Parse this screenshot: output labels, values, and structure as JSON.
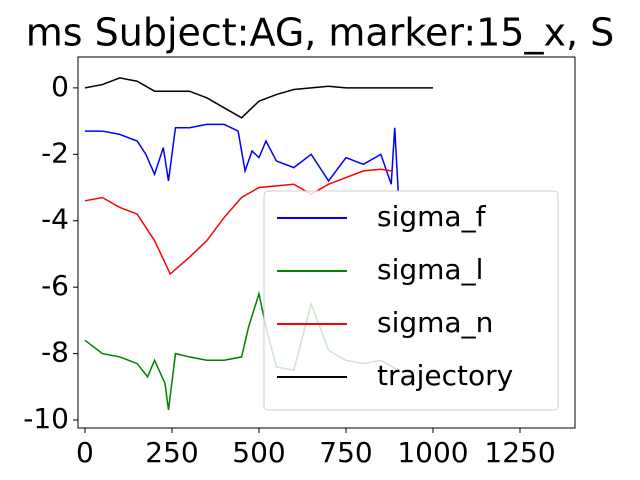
{
  "chart_data": {
    "type": "line",
    "title": "ms Subject:AG, marker:15_x, S",
    "xlim": [
      -20,
      1408
    ],
    "xticks": [
      0,
      250,
      500,
      750,
      1000,
      1250
    ],
    "ylim": [
      -10.24,
      0.93
    ],
    "yticks": [
      0,
      -2,
      -4,
      -6,
      -8,
      -10
    ],
    "legend": "lower right",
    "series": [
      {
        "name": "sigma_f",
        "color": "#0000ff",
        "x": [
          0,
          50,
          100,
          150,
          175,
          200,
          225,
          240,
          260,
          300,
          350,
          400,
          440,
          460,
          480,
          500,
          520,
          550,
          600,
          650,
          700,
          750,
          800,
          850,
          880,
          890,
          900
        ],
        "values": [
          -1.3,
          -1.3,
          -1.4,
          -1.6,
          -2.0,
          -2.6,
          -1.8,
          -2.8,
          -1.2,
          -1.2,
          -1.1,
          -1.1,
          -1.3,
          -2.5,
          -1.9,
          -2.1,
          -1.6,
          -2.2,
          -2.4,
          -2.0,
          -2.8,
          -2.1,
          -2.3,
          -2.0,
          -2.9,
          -1.2,
          -3.1
        ]
      },
      {
        "name": "sigma_l",
        "color": "#008000",
        "x": [
          0,
          50,
          100,
          150,
          180,
          200,
          230,
          240,
          260,
          300,
          350,
          400,
          450,
          470,
          500,
          520,
          550,
          600,
          650,
          700,
          750,
          800,
          850,
          900
        ],
        "values": [
          -7.6,
          -8.0,
          -8.1,
          -8.3,
          -8.7,
          -8.2,
          -8.9,
          -9.7,
          -8.0,
          -8.1,
          -8.2,
          -8.2,
          -8.1,
          -7.2,
          -6.2,
          -7.2,
          -8.4,
          -8.5,
          -6.5,
          -7.9,
          -8.2,
          -8.3,
          -8.2,
          -8.5
        ]
      },
      {
        "name": "sigma_n",
        "color": "#ff0000",
        "x": [
          0,
          50,
          100,
          150,
          200,
          245,
          300,
          350,
          400,
          450,
          500,
          550,
          600,
          650,
          700,
          750,
          800,
          850,
          880
        ],
        "values": [
          -3.4,
          -3.3,
          -3.6,
          -3.8,
          -4.6,
          -5.6,
          -5.1,
          -4.6,
          -3.9,
          -3.3,
          -3.0,
          -2.95,
          -2.9,
          -3.2,
          -2.9,
          -2.7,
          -2.5,
          -2.45,
          -2.5
        ]
      },
      {
        "name": "trajectory",
        "color": "#000000",
        "x": [
          0,
          50,
          100,
          150,
          200,
          250,
          300,
          350,
          400,
          450,
          500,
          550,
          600,
          650,
          700,
          750,
          800,
          850,
          900,
          950,
          1000
        ],
        "values": [
          0,
          0.1,
          0.3,
          0.2,
          -0.1,
          -0.1,
          -0.1,
          -0.3,
          -0.6,
          -0.9,
          -0.4,
          -0.2,
          -0.05,
          0,
          0.05,
          0,
          0,
          0,
          0,
          0,
          0
        ]
      }
    ]
  }
}
